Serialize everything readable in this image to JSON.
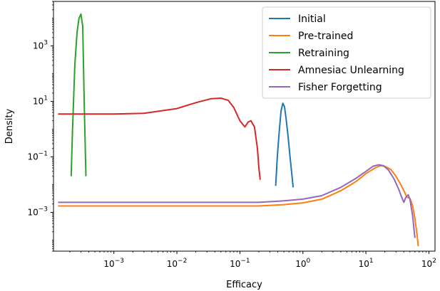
{
  "chart_data": {
    "type": "line",
    "title": "",
    "xlabel": "Efficacy",
    "ylabel": "Density",
    "xscale": "log",
    "yscale": "log",
    "xlim": [
      0.00011,
      125
    ],
    "ylim": [
      4e-05,
      40000
    ],
    "grid": false,
    "legend_position": "top-right",
    "x_ticks": [
      {
        "value": 0.001,
        "base": "10",
        "exp": "−3"
      },
      {
        "value": 0.01,
        "base": "10",
        "exp": "−2"
      },
      {
        "value": 0.1,
        "base": "10",
        "exp": "−1"
      },
      {
        "value": 1,
        "base": "10",
        "exp": "0"
      },
      {
        "value": 10,
        "base": "10",
        "exp": "1"
      },
      {
        "value": 100,
        "base": "10",
        "exp": "2"
      }
    ],
    "y_ticks": [
      {
        "value": 0.001,
        "base": "10",
        "exp": "−3"
      },
      {
        "value": 0.1,
        "base": "10",
        "exp": "−1"
      },
      {
        "value": 10,
        "base": "10",
        "exp": "1"
      },
      {
        "value": 1000,
        "base": "10",
        "exp": "3"
      }
    ],
    "series": [
      {
        "name": "Initial",
        "color": "#1f77b4",
        "x": [
          0.37,
          0.39,
          0.42,
          0.45,
          0.48,
          0.51,
          0.54,
          0.58,
          0.62,
          0.66,
          0.7
        ],
        "y": [
          0.009,
          0.08,
          0.8,
          4.5,
          8.5,
          6.5,
          2.5,
          0.6,
          0.12,
          0.03,
          0.008
        ]
      },
      {
        "name": "Pre-trained",
        "color": "#ff7f0e",
        "x": [
          0.00013,
          0.001,
          0.01,
          0.1,
          0.2,
          0.5,
          1,
          2,
          4,
          7,
          10,
          14,
          17,
          20,
          25,
          30,
          35,
          40,
          45,
          50,
          55,
          60,
          65,
          68
        ],
        "y": [
          0.0017,
          0.0017,
          0.0017,
          0.0017,
          0.0017,
          0.0019,
          0.0022,
          0.003,
          0.006,
          0.013,
          0.025,
          0.04,
          0.048,
          0.046,
          0.035,
          0.02,
          0.011,
          0.006,
          0.0035,
          0.0032,
          0.0018,
          0.0006,
          0.00015,
          6e-05
        ]
      },
      {
        "name": "Retraining",
        "color": "#2ca02c",
        "x": [
          0.00021,
          0.00022,
          0.00024,
          0.00026,
          0.00028,
          0.0003,
          0.00032,
          0.00034,
          0.00036
        ],
        "y": [
          0.02,
          0.8,
          200,
          3000,
          10000,
          14000,
          5000,
          5,
          0.02
        ]
      },
      {
        "name": "Amnesiac Unlearning",
        "color": "#d62728",
        "x": [
          0.00013,
          0.001,
          0.003,
          0.01,
          0.02,
          0.035,
          0.05,
          0.065,
          0.08,
          0.1,
          0.12,
          0.135,
          0.15,
          0.17,
          0.19,
          0.2,
          0.21
        ],
        "y": [
          3.5,
          3.5,
          3.7,
          5.5,
          9,
          12.5,
          13,
          11,
          6,
          2,
          1.2,
          1.8,
          2,
          1.2,
          0.2,
          0.04,
          0.015
        ]
      },
      {
        "name": "Fisher Forgetting",
        "color": "#9467bd",
        "x": [
          0.00013,
          0.001,
          0.01,
          0.1,
          0.2,
          0.5,
          1,
          2,
          4,
          7,
          10,
          13,
          16,
          19,
          23,
          28,
          33,
          37,
          40,
          43,
          47,
          50,
          55,
          60
        ],
        "y": [
          0.0023,
          0.0023,
          0.0023,
          0.0023,
          0.0023,
          0.0026,
          0.003,
          0.004,
          0.008,
          0.017,
          0.03,
          0.046,
          0.052,
          0.048,
          0.033,
          0.016,
          0.007,
          0.0035,
          0.0023,
          0.0035,
          0.0043,
          0.003,
          0.0008,
          0.00012
        ]
      }
    ]
  }
}
